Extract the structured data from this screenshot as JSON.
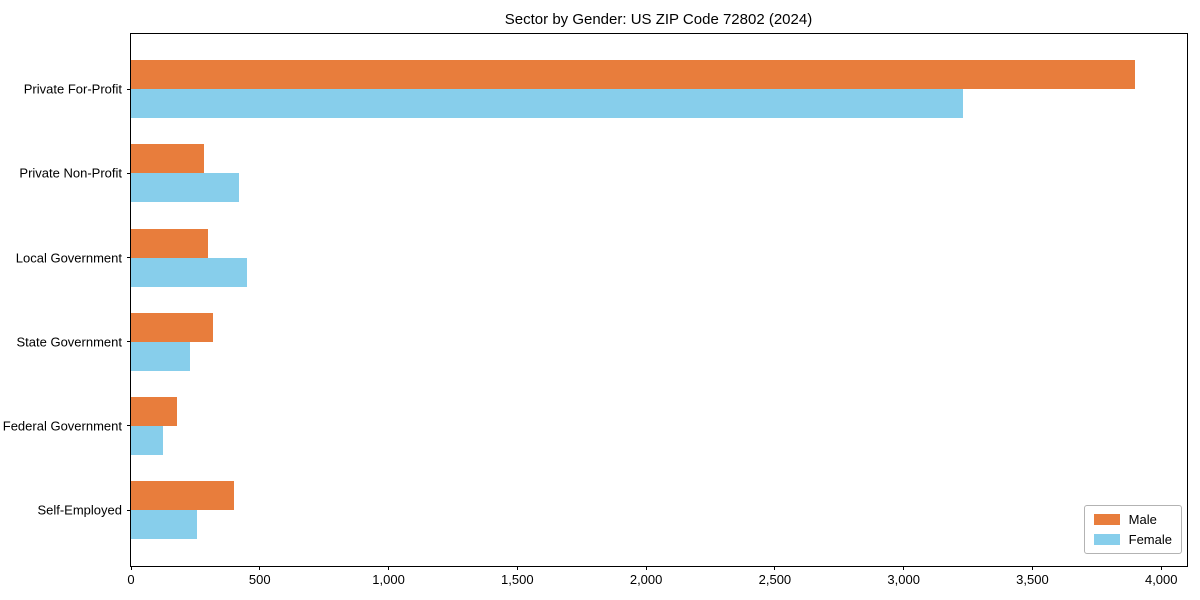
{
  "chart_data": {
    "type": "bar",
    "orientation": "horizontal",
    "title": "Sector by Gender: US ZIP Code 72802 (2024)",
    "categories": [
      "Private For-Profit",
      "Private Non-Profit",
      "Local Government",
      "State Government",
      "Federal Government",
      "Self-Employed"
    ],
    "series": [
      {
        "name": "Male",
        "color": "#e87d3c",
        "values": [
          3900,
          285,
          300,
          320,
          180,
          400
        ]
      },
      {
        "name": "Female",
        "color": "#87ceeb",
        "values": [
          3230,
          420,
          450,
          230,
          125,
          255
        ]
      }
    ],
    "xlabel": "",
    "ylabel": "",
    "xlim": [
      0,
      4100
    ],
    "xticks": [
      0,
      500,
      1000,
      1500,
      2000,
      2500,
      3000,
      3500,
      4000
    ],
    "xtick_labels": [
      "0",
      "500",
      "1,000",
      "1,500",
      "2,000",
      "2,500",
      "3,000",
      "3,500",
      "4,000"
    ],
    "grid": false,
    "legend_position": "lower right"
  }
}
